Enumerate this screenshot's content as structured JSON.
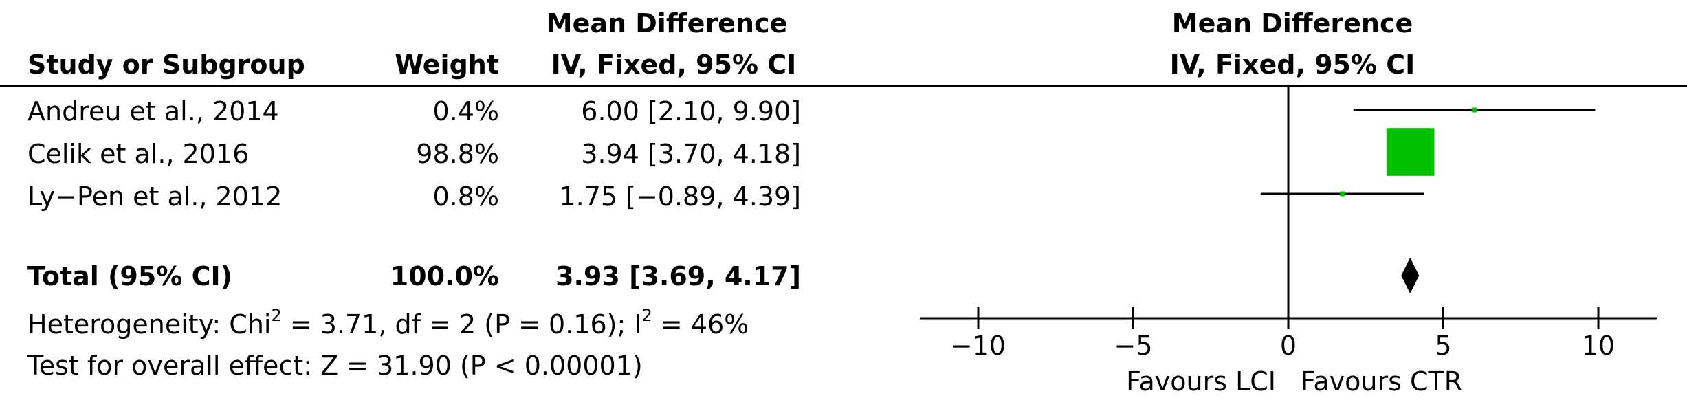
{
  "header": {
    "study_col": "Study or Subgroup",
    "weight_col": "Weight",
    "md_col_line1": "Mean Difference",
    "md_col_line2": "IV, Fixed, 95% CI",
    "plot_col_line1": "Mean Difference",
    "plot_col_line2": "IV, Fixed, 95% CI"
  },
  "studies": [
    {
      "name": "Andreu et al., 2014",
      "weight": "0.4%",
      "ci_text": "6.00 [2.10, 9.90]"
    },
    {
      "name": "Celik et al., 2016",
      "weight": "98.8%",
      "ci_text": "3.94 [3.70, 4.18]"
    },
    {
      "name": "Ly−Pen et al., 2012",
      "weight": "0.8%",
      "ci_text": "1.75 [−0.89, 4.39]"
    }
  ],
  "total": {
    "label": "Total (95% CI)",
    "weight": "100.0%",
    "ci_text": "3.93 [3.69, 4.17]"
  },
  "heterogeneity": {
    "prefix": "Heterogeneity: Chi",
    "sup1": "2",
    "mid": " = 3.71, df = 2 (P = 0.16); I",
    "sup2": "2",
    "suffix": " = 46%"
  },
  "overall_effect": "Test for overall effect: Z = 31.90 (P < 0.00001)",
  "favours": {
    "left": "Favours LCI",
    "right": "Favours CTR"
  },
  "colors": {
    "square": "#00c000",
    "diamond": "#000000",
    "line": "#000000"
  },
  "chart_data": {
    "type": "forest",
    "xlim": [
      -12,
      12
    ],
    "ticks": [
      -10,
      -5,
      0,
      5,
      10
    ],
    "tick_labels": [
      "−10",
      "−5",
      "0",
      "5",
      "10"
    ],
    "studies": [
      {
        "mean": 6.0,
        "lower": 2.1,
        "upper": 9.9,
        "weight": 0.4
      },
      {
        "mean": 3.94,
        "lower": 3.7,
        "upper": 4.18,
        "weight": 98.8
      },
      {
        "mean": 1.75,
        "lower": -0.89,
        "upper": 4.39,
        "weight": 0.8
      }
    ],
    "total": {
      "mean": 3.93,
      "lower": 3.69,
      "upper": 4.17
    }
  }
}
